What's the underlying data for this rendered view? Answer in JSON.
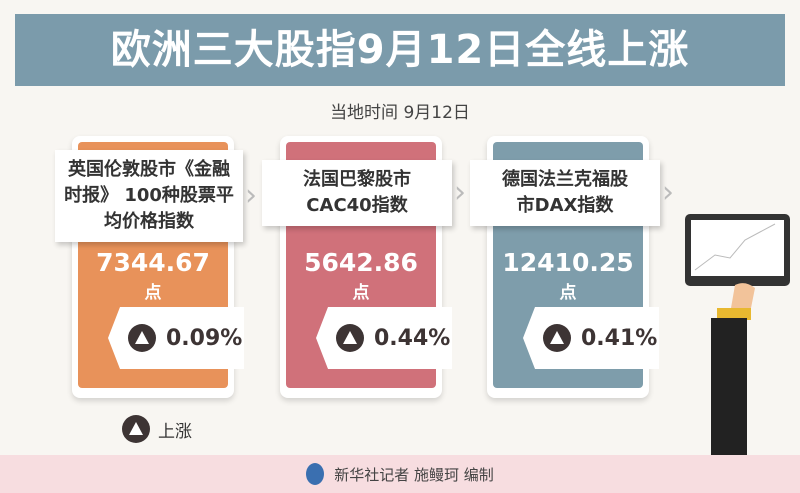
{
  "title": "欧洲三大股指9月12日全线上涨",
  "subtitle": "当地时间  9月12日",
  "indices": [
    {
      "name": "英国伦敦股市《金融时报》 100种股票平均价格指数",
      "value": "7344.67",
      "unit": "点",
      "change": "0.09%",
      "direction": "up",
      "color": "#e8925a"
    },
    {
      "name": "法国巴黎股市CAC40指数",
      "value": "5642.86",
      "unit": "点",
      "change": "0.44%",
      "direction": "up",
      "color": "#d0717a"
    },
    {
      "name": "德国法兰克福股市DAX指数",
      "value": "12410.25",
      "unit": "点",
      "change": "0.41%",
      "direction": "up",
      "color": "#7e9dab"
    }
  ],
  "legend": {
    "icon": "up-triangle-icon",
    "label": "上涨"
  },
  "footer": "新华社记者 施鳗珂 编制"
}
